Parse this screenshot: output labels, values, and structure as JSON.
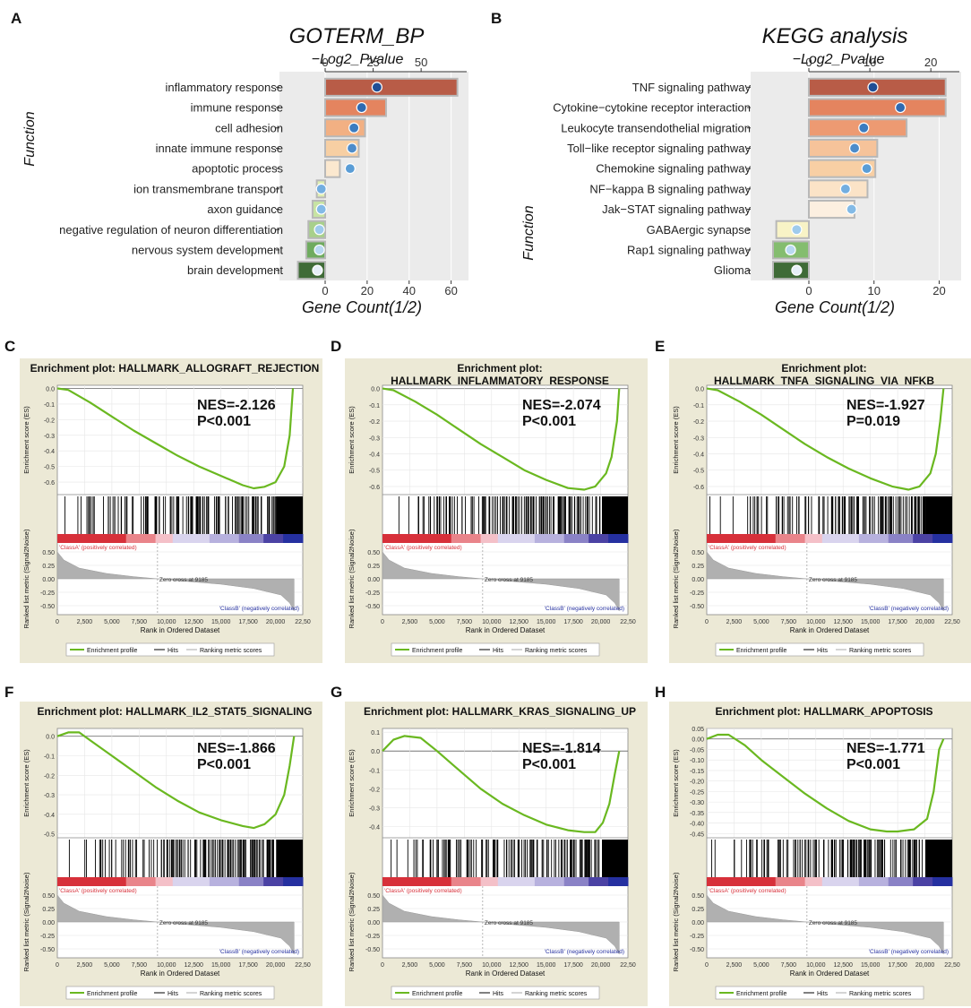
{
  "figure": {
    "title": "Functional enrichment (GO/KEGG) and GSEA hallmark plots"
  },
  "chart_data": [
    {
      "panel": "A",
      "type": "bar",
      "title": "GOTERM_BP",
      "xlabel": "Gene Count(1/2)",
      "ylabel": "Function",
      "top_axis_label": "−Log2_Pvalue",
      "xlim": [
        -13,
        64
      ],
      "xticks": [
        0,
        20,
        40,
        60
      ],
      "top_lim": [
        0,
        70
      ],
      "top_ticks": [
        0,
        25,
        50
      ],
      "categories": [
        "inflammatory response",
        "immune response",
        "cell adhesion",
        "innate immune response",
        "apoptotic process",
        "ion transmembrane transport",
        "axon guidance",
        "negative regulation of neuron differentiation",
        "nervous system development",
        "brain development"
      ],
      "values": [
        63,
        29,
        19,
        16,
        7,
        -4,
        -6,
        -8,
        -9,
        -13
      ],
      "pvalue_points": [
        27,
        19,
        15,
        14,
        13,
        -2,
        -2,
        -3,
        -3,
        -4
      ],
      "colors": [
        "#b85c47",
        "#e4845f",
        "#f2b083",
        "#f7cfa3",
        "#fbe8cf",
        "#dfeeb2",
        "#c7e3a3",
        "#a8d08b",
        "#6fab5f",
        "#3f6b37"
      ],
      "point_colors": [
        "#1f4e95",
        "#2f6ab1",
        "#3c7cc0",
        "#4d8cca",
        "#5a9dd6",
        "#73aee0",
        "#83bae6",
        "#9fcbec",
        "#b9d9f1",
        "#e7eff8"
      ]
    },
    {
      "panel": "B",
      "type": "bar",
      "title": "KEGG analysis",
      "xlabel": "Gene Count(1/2)",
      "ylabel": "Function",
      "top_axis_label": "−Log2_Pvalue",
      "xlim": [
        -6.5,
        22
      ],
      "xticks": [
        0,
        10,
        20
      ],
      "top_lim": [
        0,
        25
      ],
      "top_ticks": [
        0,
        10,
        20
      ],
      "categories": [
        "TNF signaling pathway",
        "Cytokine−cytokine receptor interaction",
        "Leukocyte transendothelial migration",
        "Toll−like receptor signaling pathway",
        "Chemokine signaling pathway",
        "NF−kappa B signaling pathway",
        "Jak−STAT signaling pathway",
        "GABAergic synapse",
        "Rap1 signaling pathway",
        "Glioma"
      ],
      "values": [
        21,
        21,
        15,
        10.5,
        10.2,
        9,
        7,
        -5,
        -5.5,
        -5.5
      ],
      "pvalue_points": [
        10.5,
        15,
        9,
        7.5,
        9.5,
        6,
        7,
        -2,
        -3,
        -2
      ],
      "colors": [
        "#b85c47",
        "#e4845f",
        "#ed9a72",
        "#f6c39a",
        "#f8cfa4",
        "#fbe3c7",
        "#fcefe0",
        "#f8f3c6",
        "#84bd6f",
        "#3f6b37"
      ],
      "point_colors": [
        "#1f4e95",
        "#2f6ab1",
        "#3c7cc0",
        "#4d8cca",
        "#5a9dd6",
        "#73aee0",
        "#83bae6",
        "#9fcbec",
        "#b9d9f1",
        "#e7eff8"
      ]
    },
    {
      "panel": "C",
      "type": "line",
      "title_lines": [
        "Enrichment plot: HALLMARK_ALLOGRAFT_REJECTION"
      ],
      "nes": "NES=-2.126",
      "p": "P<0.001",
      "ylim": [
        -0.68,
        0.02
      ],
      "yticks": [
        {
          "v": 0,
          "t": "0.0"
        },
        {
          "v": -0.1,
          "t": "-0.1"
        },
        {
          "v": -0.2,
          "t": "-0.2"
        },
        {
          "v": -0.3,
          "t": "-0.3"
        },
        {
          "v": -0.4,
          "t": "-0.4"
        },
        {
          "v": -0.5,
          "t": "-0.5"
        },
        {
          "v": -0.6,
          "t": "-0.6"
        }
      ],
      "es_x": [
        0,
        1000,
        3000,
        5000,
        7000,
        9000,
        11000,
        13000,
        15000,
        17000,
        18000,
        19000,
        20000,
        20800,
        21300,
        21600
      ],
      "es_y": [
        0,
        -0.01,
        -0.09,
        -0.18,
        -0.27,
        -0.35,
        -0.43,
        -0.5,
        -0.56,
        -0.62,
        -0.64,
        -0.63,
        -0.6,
        -0.5,
        -0.3,
        0
      ]
    },
    {
      "panel": "D",
      "type": "line",
      "title_lines": [
        "Enrichment plot:",
        "HALLMARK_INFLAMMATORY_RESPONSE"
      ],
      "nes": "NES=-2.074",
      "p": "P<0.001",
      "ylim": [
        -0.65,
        0.02
      ],
      "yticks": [
        {
          "v": 0,
          "t": "0.0"
        },
        {
          "v": -0.1,
          "t": "-0.1"
        },
        {
          "v": -0.2,
          "t": "-0.2"
        },
        {
          "v": -0.3,
          "t": "-0.3"
        },
        {
          "v": -0.4,
          "t": "-0.4"
        },
        {
          "v": -0.5,
          "t": "-0.5"
        },
        {
          "v": -0.6,
          "t": "-0.6"
        }
      ],
      "es_x": [
        0,
        1000,
        3000,
        5000,
        7000,
        9000,
        11000,
        13000,
        15000,
        17000,
        18500,
        19500,
        20500,
        21000,
        21500,
        21700
      ],
      "es_y": [
        0,
        -0.01,
        -0.08,
        -0.16,
        -0.25,
        -0.34,
        -0.42,
        -0.5,
        -0.56,
        -0.61,
        -0.62,
        -0.6,
        -0.52,
        -0.42,
        -0.2,
        0
      ]
    },
    {
      "panel": "E",
      "type": "line",
      "title_lines": [
        "Enrichment plot:",
        "HALLMARK_TNFA_SIGNALING_VIA_NFKB"
      ],
      "nes": "NES=-1.927",
      "p": "P=0.019",
      "ylim": [
        -0.65,
        0.02
      ],
      "yticks": [
        {
          "v": 0,
          "t": "0.0"
        },
        {
          "v": -0.1,
          "t": "-0.1"
        },
        {
          "v": -0.2,
          "t": "-0.2"
        },
        {
          "v": -0.3,
          "t": "-0.3"
        },
        {
          "v": -0.4,
          "t": "-0.4"
        },
        {
          "v": -0.5,
          "t": "-0.5"
        },
        {
          "v": -0.6,
          "t": "-0.6"
        }
      ],
      "es_x": [
        0,
        1000,
        3000,
        5000,
        7000,
        9000,
        11000,
        13000,
        15000,
        17000,
        18500,
        19500,
        20500,
        21000,
        21400,
        21700
      ],
      "es_y": [
        0,
        -0.01,
        -0.08,
        -0.16,
        -0.25,
        -0.34,
        -0.42,
        -0.49,
        -0.55,
        -0.6,
        -0.62,
        -0.6,
        -0.52,
        -0.4,
        -0.2,
        0
      ]
    },
    {
      "panel": "F",
      "type": "line",
      "title_lines": [
        "Enrichment plot: HALLMARK_IL2_STAT5_SIGNALING"
      ],
      "nes": "NES=-1.866",
      "p": "P<0.001",
      "ylim": [
        -0.52,
        0.04
      ],
      "yticks": [
        {
          "v": 0,
          "t": "0.0"
        },
        {
          "v": -0.1,
          "t": "-0.1"
        },
        {
          "v": -0.2,
          "t": "-0.2"
        },
        {
          "v": -0.3,
          "t": "-0.3"
        },
        {
          "v": -0.4,
          "t": "-0.4"
        },
        {
          "v": -0.5,
          "t": "-0.5"
        }
      ],
      "es_x": [
        0,
        1000,
        2000,
        3000,
        5000,
        7000,
        9000,
        11000,
        13000,
        15000,
        17000,
        18000,
        19000,
        20000,
        20800,
        21300,
        21700
      ],
      "es_y": [
        0,
        0.02,
        0.02,
        -0.02,
        -0.1,
        -0.18,
        -0.26,
        -0.33,
        -0.39,
        -0.43,
        -0.46,
        -0.47,
        -0.45,
        -0.4,
        -0.3,
        -0.15,
        0
      ]
    },
    {
      "panel": "G",
      "type": "line",
      "title_lines": [
        "Enrichment plot: HALLMARK_KRAS_SIGNALING_UP"
      ],
      "nes": "NES=-1.814",
      "p": "P<0.001",
      "ylim": [
        -0.46,
        0.12
      ],
      "yticks": [
        {
          "v": 0.1,
          "t": "0.1"
        },
        {
          "v": 0,
          "t": "0.0"
        },
        {
          "v": -0.1,
          "t": "-0.1"
        },
        {
          "v": -0.2,
          "t": "-0.2"
        },
        {
          "v": -0.3,
          "t": "-0.3"
        },
        {
          "v": -0.4,
          "t": "-0.4"
        }
      ],
      "es_x": [
        0,
        1000,
        2000,
        3500,
        5000,
        7000,
        9000,
        11000,
        13000,
        15000,
        17000,
        18500,
        19500,
        20200,
        20800,
        21300,
        21700
      ],
      "es_y": [
        0,
        0.06,
        0.08,
        0.07,
        0.0,
        -0.1,
        -0.2,
        -0.28,
        -0.34,
        -0.39,
        -0.42,
        -0.43,
        -0.43,
        -0.38,
        -0.28,
        -0.12,
        0
      ]
    },
    {
      "panel": "H",
      "type": "line",
      "title_lines": [
        "Enrichment plot: HALLMARK_APOPTOSIS"
      ],
      "nes": "NES=-1.771",
      "p": "P<0.001",
      "ylim": [
        -0.47,
        0.05
      ],
      "yticks": [
        {
          "v": 0.05,
          "t": "0.05"
        },
        {
          "v": 0,
          "t": "0.00"
        },
        {
          "v": -0.05,
          "t": "-0.05"
        },
        {
          "v": -0.1,
          "t": "-0.10"
        },
        {
          "v": -0.15,
          "t": "-0.15"
        },
        {
          "v": -0.2,
          "t": "-0.20"
        },
        {
          "v": -0.25,
          "t": "-0.25"
        },
        {
          "v": -0.3,
          "t": "-0.30"
        },
        {
          "v": -0.35,
          "t": "-0.35"
        },
        {
          "v": -0.4,
          "t": "-0.40"
        },
        {
          "v": -0.45,
          "t": "-0.45"
        }
      ],
      "es_x": [
        0,
        1000,
        2000,
        3500,
        5000,
        7000,
        9000,
        11000,
        13000,
        15000,
        16500,
        17500,
        19000,
        20200,
        20800,
        21300,
        21700
      ],
      "es_y": [
        0,
        0.02,
        0.02,
        -0.03,
        -0.1,
        -0.18,
        -0.26,
        -0.33,
        -0.39,
        -0.43,
        -0.44,
        -0.44,
        -0.43,
        -0.38,
        -0.25,
        -0.05,
        0
      ]
    }
  ],
  "gsea_common": {
    "es_axis_label": "Enrichment score (ES)",
    "rank_axis_label": "Ranked list metric (Signal2Noise)",
    "x_axis_label": "Rank in Ordered Dataset",
    "xticks": [
      "0",
      "2,500",
      "5,000",
      "7,500",
      "10,000",
      "12,500",
      "15,000",
      "17,500",
      "20,000",
      "22,50"
    ],
    "rank_yticks": [
      "0.50",
      "0.25",
      "0.00",
      "-0.25",
      "-0.50"
    ],
    "class_a": "'ClassA' (positively correlated)",
    "class_b": "'ClassB' (negatively correlated)",
    "zero_cross": "Zero cross at 9185",
    "legend": [
      "Enrichment profile",
      "Hits",
      "Ranking metric scores"
    ],
    "colors": {
      "es_line": "#6ab820",
      "panel_bg": "#ece9d6",
      "hits": "#000000",
      "metric": "#b0b0b0"
    }
  }
}
